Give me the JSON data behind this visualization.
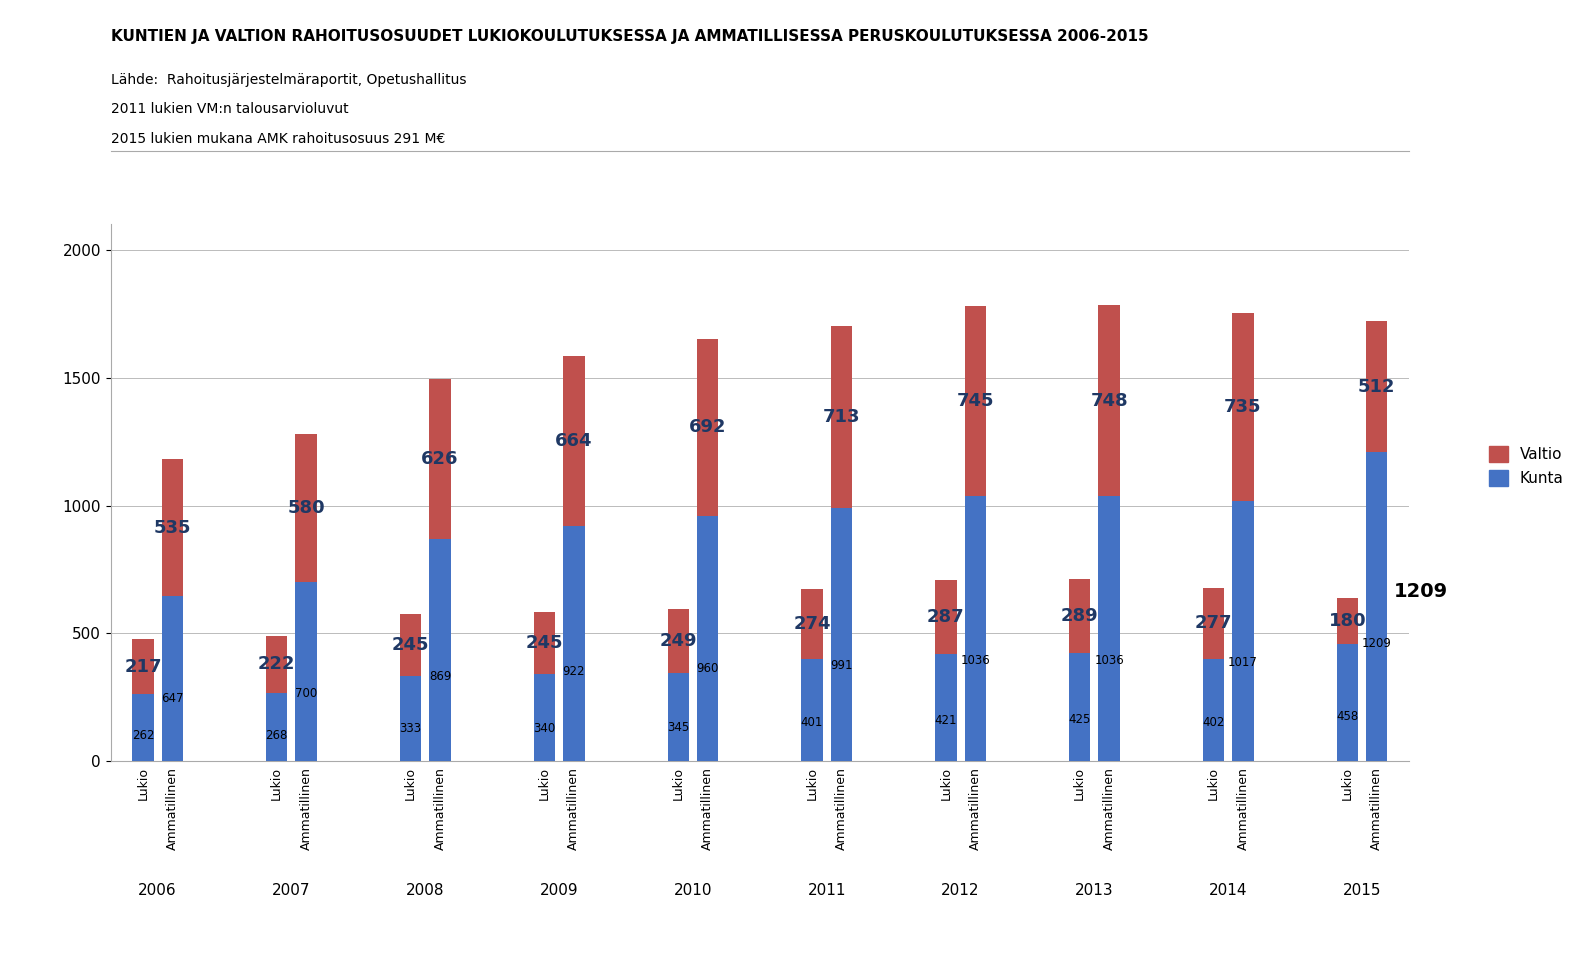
{
  "title": "KUNTIEN JA VALTION RAHOITUSOSUUDET LUKIOKOULUTUKSESSA JA AMMATILLISESSA PERUSKOULUTUKSESSA 2006-2015",
  "subtitle1": "Lähde:  Rahoitusjärjestelmäraportit, Opetushallitus",
  "subtitle2": "2011 lukien VM:n talousarvioluvut",
  "subtitle3": "2015 lukien mukana AMK rahoitusosuus 291 M€",
  "years": [
    2006,
    2007,
    2008,
    2009,
    2010,
    2011,
    2012,
    2013,
    2014,
    2015
  ],
  "lukio_kunta": [
    262,
    268,
    333,
    340,
    345,
    401,
    421,
    425,
    402,
    458
  ],
  "lukio_valtio": [
    217,
    222,
    245,
    245,
    249,
    274,
    287,
    289,
    277,
    180
  ],
  "amm_kunta": [
    647,
    700,
    869,
    922,
    960,
    991,
    1036,
    1036,
    1017,
    1209
  ],
  "amm_valtio": [
    535,
    580,
    626,
    664,
    692,
    713,
    745,
    748,
    735,
    512
  ],
  "color_kunta": "#4472C4",
  "color_valtio": "#C0504D",
  "color_background": "#FFFFFF",
  "ylim": [
    0,
    2100
  ],
  "yticks": [
    0,
    500,
    1000,
    1500,
    2000
  ],
  "legend_valtio": "Valtio",
  "legend_kunta": "Kunta"
}
